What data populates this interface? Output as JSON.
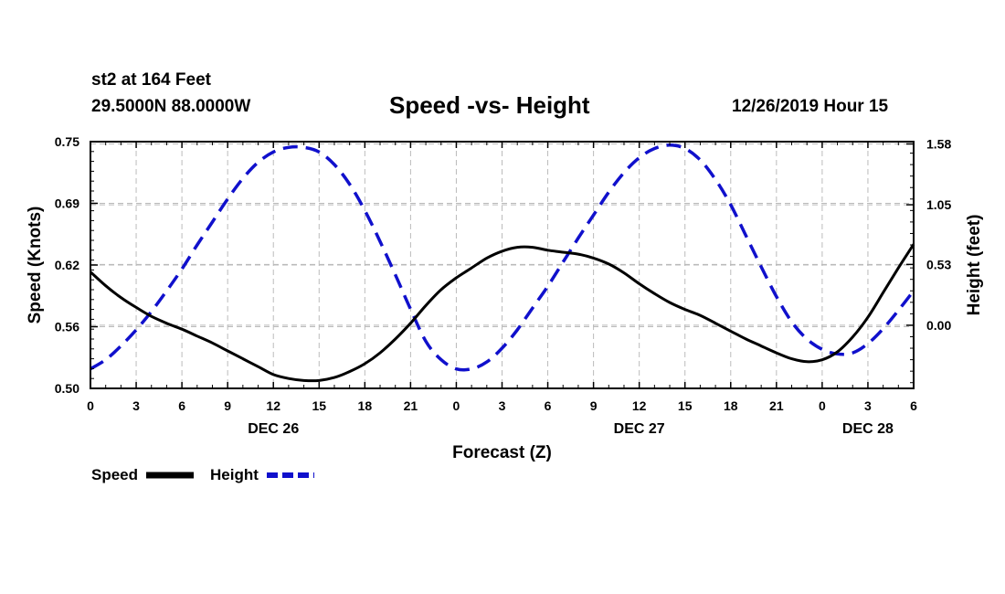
{
  "header": {
    "station": "st2 at 164 Feet",
    "coords": "29.5000N 88.0000W",
    "title": "Speed -vs- Height",
    "date": "12/26/2019 Hour 15"
  },
  "chart_data": {
    "type": "line",
    "title": "Speed -vs- Height",
    "xlabel": "Forecast (Z)",
    "ylabel_left": "Speed (Knots)",
    "ylabel_right": "Height (feet)",
    "x_tick_labels": [
      "0",
      "3",
      "6",
      "9",
      "12",
      "15",
      "18",
      "21",
      "0",
      "3",
      "6",
      "9",
      "12",
      "15",
      "18",
      "21",
      "0",
      "3",
      "6"
    ],
    "x_range_hours": [
      0,
      54
    ],
    "date_labels": [
      {
        "label": "DEC 26",
        "hour": 12
      },
      {
        "label": "DEC 27",
        "hour": 36
      },
      {
        "label": "DEC 28",
        "hour": 51
      }
    ],
    "y_left": {
      "min": 0.5,
      "max": 0.75,
      "ticks": [
        "0.50",
        "0.56",
        "0.62",
        "0.69",
        "0.75"
      ]
    },
    "y_right": {
      "min": -0.55,
      "max": 1.6,
      "ticks": [
        {
          "label": "0.00",
          "value": 0.0
        },
        {
          "label": "0.53",
          "value": 0.53
        },
        {
          "label": "1.05",
          "value": 1.05
        },
        {
          "label": "1.58",
          "value": 1.58
        }
      ]
    },
    "grid": true,
    "legend": "bottom-left",
    "series": [
      {
        "name": "Speed",
        "axis": "left",
        "color": "#000000",
        "style": "solid",
        "points": [
          [
            0,
            0.618
          ],
          [
            1,
            0.604
          ],
          [
            2,
            0.592
          ],
          [
            3,
            0.582
          ],
          [
            4,
            0.573
          ],
          [
            5,
            0.566
          ],
          [
            6,
            0.56
          ],
          [
            7,
            0.553
          ],
          [
            8,
            0.546
          ],
          [
            9,
            0.538
          ],
          [
            10,
            0.53
          ],
          [
            11,
            0.522
          ],
          [
            12,
            0.514
          ],
          [
            13,
            0.51
          ],
          [
            14,
            0.508
          ],
          [
            15,
            0.508
          ],
          [
            16,
            0.511
          ],
          [
            17,
            0.517
          ],
          [
            18,
            0.525
          ],
          [
            19,
            0.536
          ],
          [
            20,
            0.55
          ],
          [
            21,
            0.566
          ],
          [
            22,
            0.584
          ],
          [
            23,
            0.6
          ],
          [
            24,
            0.612
          ],
          [
            25,
            0.622
          ],
          [
            26,
            0.632
          ],
          [
            27,
            0.639
          ],
          [
            28,
            0.643
          ],
          [
            29,
            0.643
          ],
          [
            30,
            0.64
          ],
          [
            31,
            0.638
          ],
          [
            32,
            0.636
          ],
          [
            33,
            0.632
          ],
          [
            34,
            0.626
          ],
          [
            35,
            0.617
          ],
          [
            36,
            0.606
          ],
          [
            37,
            0.596
          ],
          [
            38,
            0.587
          ],
          [
            39,
            0.58
          ],
          [
            40,
            0.574
          ],
          [
            41,
            0.566
          ],
          [
            42,
            0.558
          ],
          [
            43,
            0.55
          ],
          [
            44,
            0.543
          ],
          [
            45,
            0.536
          ],
          [
            46,
            0.53
          ],
          [
            47,
            0.527
          ],
          [
            48,
            0.529
          ],
          [
            49,
            0.537
          ],
          [
            50,
            0.552
          ],
          [
            51,
            0.572
          ],
          [
            52,
            0.597
          ],
          [
            53,
            0.622
          ],
          [
            54,
            0.646
          ]
        ]
      },
      {
        "name": "Height",
        "axis": "right",
        "color": "#1010cc",
        "style": "dashed",
        "points": [
          [
            0,
            -0.38
          ],
          [
            1,
            -0.3
          ],
          [
            2,
            -0.18
          ],
          [
            3,
            -0.04
          ],
          [
            4,
            0.12
          ],
          [
            5,
            0.3
          ],
          [
            6,
            0.49
          ],
          [
            7,
            0.7
          ],
          [
            8,
            0.9
          ],
          [
            9,
            1.1
          ],
          [
            10,
            1.28
          ],
          [
            11,
            1.42
          ],
          [
            12,
            1.51
          ],
          [
            13,
            1.55
          ],
          [
            14,
            1.55
          ],
          [
            15,
            1.51
          ],
          [
            16,
            1.4
          ],
          [
            17,
            1.23
          ],
          [
            18,
            1.0
          ],
          [
            19,
            0.73
          ],
          [
            20,
            0.44
          ],
          [
            21,
            0.14
          ],
          [
            22,
            -0.14
          ],
          [
            23,
            -0.3
          ],
          [
            24,
            -0.38
          ],
          [
            25,
            -0.38
          ],
          [
            26,
            -0.32
          ],
          [
            27,
            -0.2
          ],
          [
            28,
            -0.04
          ],
          [
            29,
            0.15
          ],
          [
            30,
            0.34
          ],
          [
            31,
            0.55
          ],
          [
            32,
            0.76
          ],
          [
            33,
            0.96
          ],
          [
            34,
            1.16
          ],
          [
            35,
            1.33
          ],
          [
            36,
            1.46
          ],
          [
            37,
            1.54
          ],
          [
            38,
            1.57
          ],
          [
            39,
            1.54
          ],
          [
            40,
            1.44
          ],
          [
            41,
            1.27
          ],
          [
            42,
            1.05
          ],
          [
            43,
            0.78
          ],
          [
            44,
            0.51
          ],
          [
            45,
            0.25
          ],
          [
            46,
            0.03
          ],
          [
            47,
            -0.12
          ],
          [
            48,
            -0.21
          ],
          [
            49,
            -0.25
          ],
          [
            50,
            -0.24
          ],
          [
            51,
            -0.16
          ],
          [
            52,
            -0.03
          ],
          [
            53,
            0.13
          ],
          [
            54,
            0.3
          ]
        ]
      }
    ]
  }
}
